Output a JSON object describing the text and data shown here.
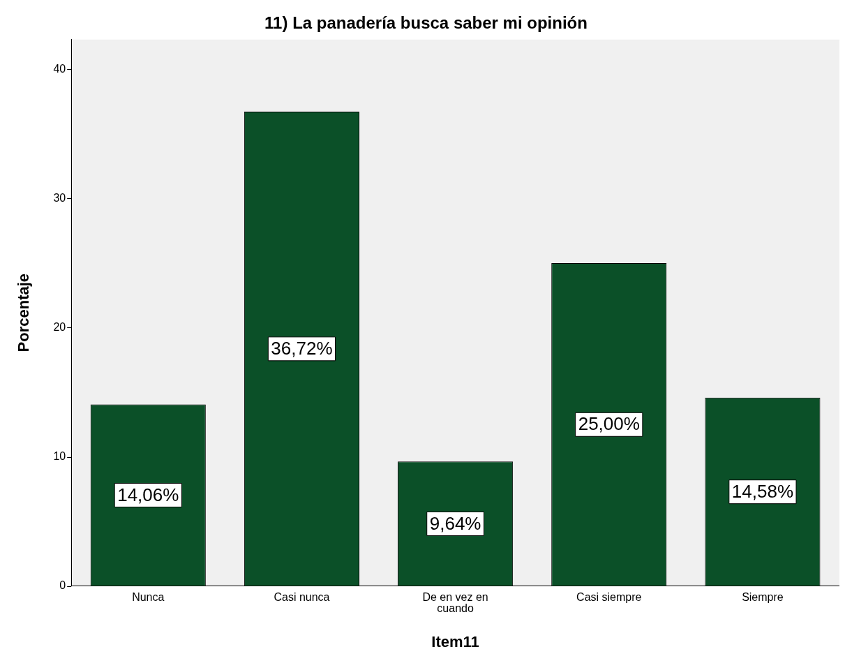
{
  "chart_data": {
    "type": "bar",
    "title": "11) La panadería busca saber mi opinión",
    "xlabel": "Item11",
    "ylabel": "Porcentaje",
    "categories": [
      "Nunca",
      "Casi nunca",
      "De en vez en cuando",
      "Casi siempre",
      "Siempre"
    ],
    "values": [
      14.06,
      36.72,
      9.64,
      25.0,
      14.58
    ],
    "value_labels": [
      "14,06%",
      "36,72%",
      "9,64%",
      "25,00%",
      "14,58%"
    ],
    "color": "#0b5028",
    "ylim": [
      0,
      42.3
    ],
    "yticks": [
      0,
      10,
      20,
      30,
      40
    ],
    "grid": false
  }
}
